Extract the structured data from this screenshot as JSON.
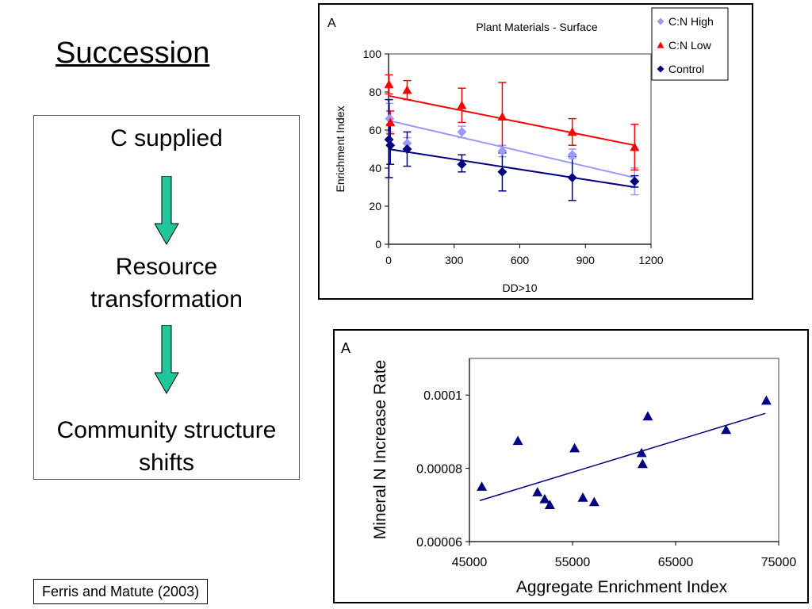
{
  "slide": {
    "title": "Succession",
    "flow_steps": [
      "C supplied",
      "Resource\ntransformation",
      "Community structure\nshifts"
    ],
    "citation": "Ferris and Matute (2003)",
    "arrow_color": "#1fc79a"
  },
  "chart_data": [
    {
      "type": "scatter",
      "panel_letter": "A",
      "title": "Plant Materials - Surface",
      "xlabel": "DD>10",
      "ylabel": "Enrichment Index",
      "xlim": [
        0,
        1200
      ],
      "ylim": [
        0,
        100
      ],
      "xticks": [
        0,
        300,
        600,
        900,
        1200
      ],
      "yticks": [
        0,
        20,
        40,
        60,
        80,
        100
      ],
      "grid": false,
      "legend_position": "top-right",
      "series": [
        {
          "name": "C:N High",
          "marker": "diamond",
          "color": "#9999ff",
          "points": [
            {
              "x": 5,
              "y": 66,
              "err_low": 59,
              "err_high": 74
            },
            {
              "x": 85,
              "y": 53,
              "err_low": 50,
              "err_high": 56
            },
            {
              "x": 335,
              "y": 59,
              "err_low": 56,
              "err_high": 62
            },
            {
              "x": 520,
              "y": 49,
              "err_low": 46,
              "err_high": 52
            },
            {
              "x": 840,
              "y": 47,
              "err_low": 45,
              "err_high": 50
            },
            {
              "x": 1125,
              "y": 33,
              "err_low": 26,
              "err_high": 40
            }
          ],
          "trendline": [
            [
              0,
              65
            ],
            [
              1125,
              35
            ]
          ]
        },
        {
          "name": "C:N Low",
          "marker": "triangle",
          "color": "#ff0000",
          "points": [
            {
              "x": 2,
              "y": 84,
              "err_low": 79,
              "err_high": 89
            },
            {
              "x": 8,
              "y": 64,
              "err_low": 58,
              "err_high": 70
            },
            {
              "x": 85,
              "y": 81,
              "err_low": 76,
              "err_high": 86
            },
            {
              "x": 335,
              "y": 73,
              "err_low": 64,
              "err_high": 82
            },
            {
              "x": 520,
              "y": 67,
              "err_low": 49,
              "err_high": 85
            },
            {
              "x": 840,
              "y": 59,
              "err_low": 52,
              "err_high": 66
            },
            {
              "x": 1125,
              "y": 51,
              "err_low": 39,
              "err_high": 63
            }
          ],
          "trendline": [
            [
              0,
              78
            ],
            [
              1125,
              52
            ]
          ]
        },
        {
          "name": "Control",
          "marker": "diamond",
          "color": "#000080",
          "points": [
            {
              "x": 2,
              "y": 55,
              "err_low": 35,
              "err_high": 76
            },
            {
              "x": 8,
              "y": 52,
              "err_low": 42,
              "err_high": 63
            },
            {
              "x": 85,
              "y": 50,
              "err_low": 41,
              "err_high": 59
            },
            {
              "x": 335,
              "y": 42,
              "err_low": 38,
              "err_high": 47
            },
            {
              "x": 520,
              "y": 38,
              "err_low": 28,
              "err_high": 48
            },
            {
              "x": 840,
              "y": 35,
              "err_low": 23,
              "err_high": 46
            },
            {
              "x": 1125,
              "y": 33,
              "err_low": 30,
              "err_high": 36
            }
          ],
          "trendline": [
            [
              0,
              50
            ],
            [
              1125,
              30
            ]
          ]
        }
      ]
    },
    {
      "type": "scatter",
      "panel_letter": "A",
      "title": "",
      "xlabel": "Aggregate Enrichment Index",
      "ylabel": "Mineral N Increase Rate",
      "xlim": [
        45000,
        75000
      ],
      "ylim": [
        6e-05,
        0.00011
      ],
      "xticks": [
        45000,
        55000,
        65000,
        75000
      ],
      "yticks": [
        6e-05,
        8e-05,
        0.0001
      ],
      "ytick_labels": [
        "0.00006",
        "0.00008",
        "0.0001"
      ],
      "grid": false,
      "series": [
        {
          "name": "",
          "marker": "triangle",
          "color": "#000080",
          "points": [
            {
              "x": 46200,
              "y": 7.5e-05
            },
            {
              "x": 49700,
              "y": 8.75e-05
            },
            {
              "x": 51600,
              "y": 7.35e-05
            },
            {
              "x": 52300,
              "y": 7.16e-05
            },
            {
              "x": 52800,
              "y": 7e-05
            },
            {
              "x": 55200,
              "y": 8.55e-05
            },
            {
              "x": 56000,
              "y": 7.2e-05
            },
            {
              "x": 57100,
              "y": 7.08e-05
            },
            {
              "x": 61700,
              "y": 8.42e-05
            },
            {
              "x": 61800,
              "y": 8.12e-05
            },
            {
              "x": 62300,
              "y": 9.42e-05
            },
            {
              "x": 69900,
              "y": 9.05e-05
            },
            {
              "x": 73800,
              "y": 9.85e-05
            }
          ],
          "trendline": [
            [
              46000,
              7.12e-05
            ],
            [
              73700,
              9.5e-05
            ]
          ]
        }
      ]
    }
  ]
}
